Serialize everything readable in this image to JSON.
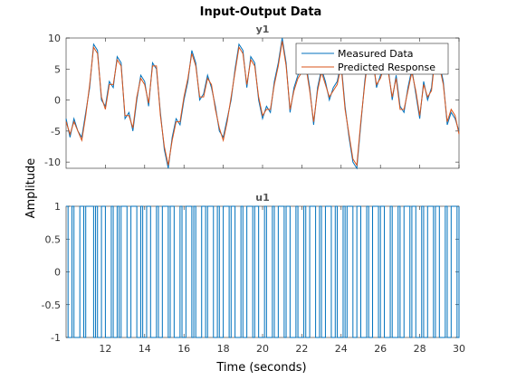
{
  "chart_data": {
    "type": "line",
    "title": "Input-Output Data",
    "xlabel": "Time (seconds)",
    "ylabel": "Amplitude",
    "xlim": [
      10,
      30
    ],
    "x_ticks": [
      12,
      14,
      16,
      18,
      20,
      22,
      24,
      26,
      28,
      30
    ],
    "panels": [
      {
        "name": "y1",
        "ylim": [
          -11,
          10
        ],
        "y_ticks": [
          -10,
          -5,
          0,
          5,
          10
        ],
        "legend": {
          "placement": "top-right"
        },
        "series": [
          {
            "name": "Measured Data",
            "color": "#0072BD",
            "x": [
              10.0,
              10.2,
              10.4,
              10.6,
              10.8,
              11.0,
              11.2,
              11.4,
              11.6,
              11.8,
              12.0,
              12.2,
              12.4,
              12.6,
              12.8,
              13.0,
              13.2,
              13.4,
              13.6,
              13.8,
              14.0,
              14.2,
              14.4,
              14.6,
              14.8,
              15.0,
              15.2,
              15.4,
              15.6,
              15.8,
              16.0,
              16.2,
              16.4,
              16.6,
              16.8,
              17.0,
              17.2,
              17.4,
              17.6,
              17.8,
              18.0,
              18.2,
              18.4,
              18.6,
              18.8,
              19.0,
              19.2,
              19.4,
              19.6,
              19.8,
              20.0,
              20.2,
              20.4,
              20.6,
              20.8,
              21.0,
              21.2,
              21.4,
              21.6,
              21.8,
              22.0,
              22.2,
              22.4,
              22.6,
              22.8,
              23.0,
              23.2,
              23.4,
              23.6,
              23.8,
              24.0,
              24.2,
              24.4,
              24.6,
              24.8,
              25.0,
              25.2,
              25.4,
              25.6,
              25.8,
              26.0,
              26.2,
              26.4,
              26.6,
              26.8,
              27.0,
              27.2,
              27.4,
              27.6,
              27.8,
              28.0,
              28.2,
              28.4,
              28.6,
              28.8,
              29.0,
              29.2,
              29.4,
              29.6,
              29.8,
              30.0
            ],
            "y": [
              -3,
              -6,
              -3,
              -5,
              -6,
              -2,
              2,
              9,
              8,
              0,
              -1,
              3,
              2,
              7,
              6,
              -3,
              -2,
              -5,
              0,
              4,
              3,
              -1,
              6,
              5,
              -2,
              -8,
              -11,
              -6,
              -3,
              -4,
              0,
              3,
              8,
              6,
              0,
              1,
              4,
              2,
              -1,
              -5,
              -6,
              -3,
              0,
              5,
              9,
              8,
              2,
              7,
              6,
              0,
              -3,
              -1,
              -2,
              3,
              6,
              10,
              6,
              -2,
              2,
              4,
              5,
              6,
              2,
              -4,
              2,
              5,
              3,
              0,
              2,
              3,
              6,
              -1,
              -6,
              -10,
              -11,
              -4,
              3,
              8,
              7,
              2,
              4,
              6,
              5,
              0,
              4,
              -1,
              -2,
              2,
              5,
              1,
              -3,
              3,
              0,
              2,
              8,
              6,
              3,
              -4,
              -2,
              -3,
              -5
            ]
          },
          {
            "name": "Predicted Response",
            "color": "#D95319",
            "x": [
              10.0,
              10.2,
              10.4,
              10.6,
              10.8,
              11.0,
              11.2,
              11.4,
              11.6,
              11.8,
              12.0,
              12.2,
              12.4,
              12.6,
              12.8,
              13.0,
              13.2,
              13.4,
              13.6,
              13.8,
              14.0,
              14.2,
              14.4,
              14.6,
              14.8,
              15.0,
              15.2,
              15.4,
              15.6,
              15.8,
              16.0,
              16.2,
              16.4,
              16.6,
              16.8,
              17.0,
              17.2,
              17.4,
              17.6,
              17.8,
              18.0,
              18.2,
              18.4,
              18.6,
              18.8,
              19.0,
              19.2,
              19.4,
              19.6,
              19.8,
              20.0,
              20.2,
              20.4,
              20.6,
              20.8,
              21.0,
              21.2,
              21.4,
              21.6,
              21.8,
              22.0,
              22.2,
              22.4,
              22.6,
              22.8,
              23.0,
              23.2,
              23.4,
              23.6,
              23.8,
              24.0,
              24.2,
              24.4,
              24.6,
              24.8,
              25.0,
              25.2,
              25.4,
              25.6,
              25.8,
              26.0,
              26.2,
              26.4,
              26.6,
              26.8,
              27.0,
              27.2,
              27.4,
              27.6,
              27.8,
              28.0,
              28.2,
              28.4,
              28.6,
              28.8,
              29.0,
              29.2,
              29.4,
              29.6,
              29.8,
              30.0
            ],
            "y": [
              -3.5,
              -5.5,
              -3.5,
              -5,
              -6.5,
              -2.5,
              2.5,
              8.5,
              7.5,
              0.5,
              -1.5,
              2.5,
              2.5,
              6.5,
              5.5,
              -2.5,
              -2.5,
              -4.5,
              0.5,
              3.5,
              2.5,
              -0.5,
              5.5,
              5.5,
              -2.5,
              -7.5,
              -10.5,
              -6.5,
              -3.5,
              -3.5,
              0.5,
              3.5,
              7.5,
              5.5,
              0.5,
              0.5,
              3.5,
              2.5,
              -1.5,
              -4.5,
              -6.5,
              -3.5,
              0.5,
              4.5,
              8.5,
              7.5,
              2.5,
              6.5,
              5.5,
              0.5,
              -2.5,
              -1.5,
              -1.5,
              2.5,
              5.5,
              9.5,
              5.5,
              -1.5,
              1.5,
              3.5,
              4.5,
              5.5,
              1.5,
              -3.5,
              1.5,
              4.5,
              2.5,
              0.5,
              1.5,
              2.5,
              5.5,
              -1.5,
              -5.5,
              -9.5,
              -10.5,
              -3.5,
              2.5,
              7.5,
              6.5,
              2.5,
              3.5,
              5.5,
              4.5,
              0.5,
              3.5,
              -1.5,
              -1.5,
              1.5,
              4.5,
              1.5,
              -2.5,
              2.5,
              0.5,
              1.5,
              7.5,
              5.5,
              2.5,
              -3.5,
              -1.5,
              -2.5,
              -5.5
            ]
          }
        ]
      },
      {
        "name": "u1",
        "ylim": [
          -1,
          1
        ],
        "y_ticks": [
          -1,
          -0.5,
          0,
          0.5,
          1
        ],
        "series": [
          {
            "name": "",
            "color": "#0072BD",
            "step": true,
            "x": [
              10.0,
              10.1,
              10.3,
              10.4,
              10.7,
              10.9,
              11.0,
              11.4,
              11.5,
              11.6,
              11.8,
              12.0,
              12.3,
              12.4,
              12.6,
              12.7,
              12.8,
              13.1,
              13.3,
              13.6,
              13.8,
              13.9,
              14.1,
              14.3,
              14.6,
              14.7,
              14.9,
              15.2,
              15.3,
              15.5,
              15.8,
              15.9,
              16.1,
              16.4,
              16.5,
              16.6,
              16.9,
              17.1,
              17.2,
              17.5,
              17.7,
              17.8,
              18.0,
              18.3,
              18.4,
              18.6,
              18.9,
              19.0,
              19.2,
              19.5,
              19.6,
              19.8,
              20.1,
              20.2,
              20.5,
              20.6,
              20.8,
              21.1,
              21.2,
              21.4,
              21.7,
              21.8,
              22.1,
              22.2,
              22.4,
              22.7,
              22.9,
              23.0,
              23.2,
              23.5,
              23.7,
              23.8,
              24.1,
              24.2,
              24.3,
              24.6,
              24.8,
              25.0,
              25.3,
              25.4,
              25.6,
              25.9,
              26.0,
              26.2,
              26.5,
              26.6,
              26.9,
              27.0,
              27.2,
              27.5,
              27.6,
              27.8,
              28.1,
              28.2,
              28.4,
              28.7,
              28.8,
              29.0,
              29.3,
              29.4,
              29.6,
              29.9,
              30.0
            ],
            "y": [
              1,
              -1,
              1,
              -1,
              1,
              -1,
              1,
              -1,
              1,
              -1,
              1,
              -1,
              1,
              -1,
              1,
              -1,
              1,
              -1,
              1,
              -1,
              1,
              -1,
              1,
              -1,
              1,
              -1,
              1,
              -1,
              1,
              -1,
              1,
              -1,
              1,
              -1,
              1,
              -1,
              1,
              -1,
              1,
              -1,
              1,
              -1,
              1,
              -1,
              1,
              -1,
              1,
              -1,
              1,
              -1,
              1,
              -1,
              1,
              -1,
              1,
              -1,
              1,
              -1,
              1,
              -1,
              1,
              -1,
              1,
              -1,
              1,
              -1,
              1,
              -1,
              1,
              -1,
              1,
              -1,
              1,
              -1,
              1,
              -1,
              1,
              -1,
              1,
              -1,
              1,
              -1,
              1,
              -1,
              1,
              -1,
              1,
              -1,
              1,
              -1,
              1,
              -1,
              1,
              -1,
              1,
              -1,
              1,
              -1,
              1,
              -1,
              1,
              -1,
              1
            ]
          }
        ]
      }
    ]
  }
}
